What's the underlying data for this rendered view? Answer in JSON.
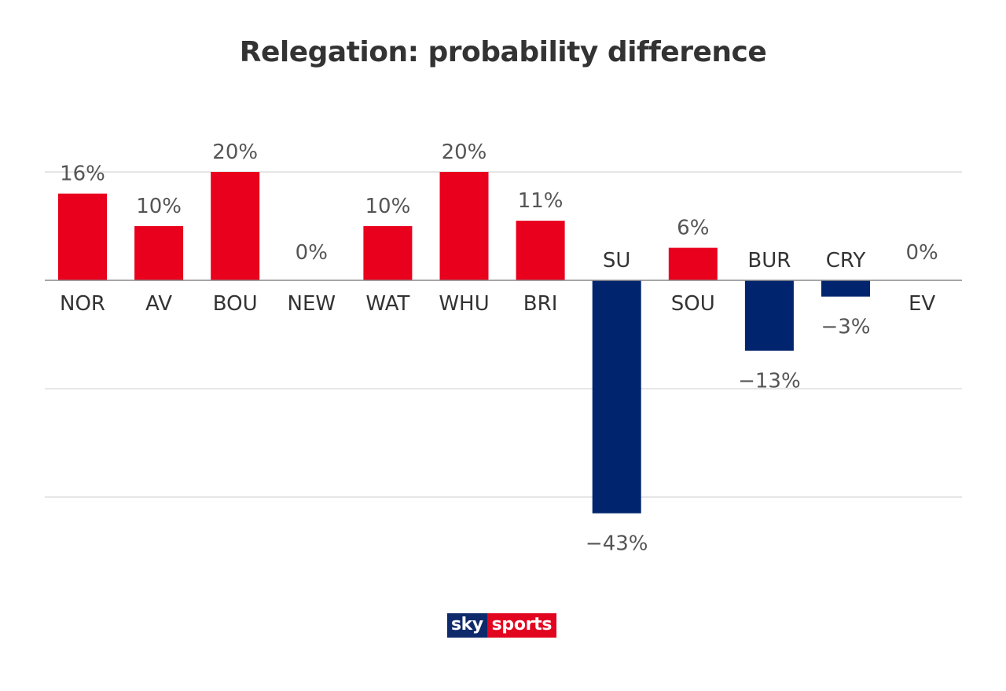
{
  "chart_data": {
    "type": "bar",
    "title": "Relegation: probability difference",
    "categories": [
      "NOR",
      "AV",
      "BOU",
      "NEW",
      "WAT",
      "WHU",
      "BRI",
      "SU",
      "SOU",
      "BUR",
      "CRY",
      "EV"
    ],
    "values": [
      16,
      10,
      20,
      0,
      10,
      20,
      11,
      -43,
      6,
      -13,
      -3,
      0
    ],
    "value_labels": [
      "16%",
      "10%",
      "20%",
      "0%",
      "10%",
      "20%",
      "11%",
      "−43%",
      "6%",
      "−13%",
      "−3%",
      "0%"
    ],
    "ylim": [
      -50,
      20
    ],
    "grid": true,
    "grid_lines": [
      20,
      -20,
      -40
    ],
    "xlabel": "",
    "ylabel": "",
    "colors": {
      "positive": "#e8001c",
      "negative": "#00256e",
      "grid": "#dddddd",
      "axis": "#888888"
    }
  },
  "branding": {
    "logo_sky": "sky",
    "logo_sports": "sports"
  }
}
